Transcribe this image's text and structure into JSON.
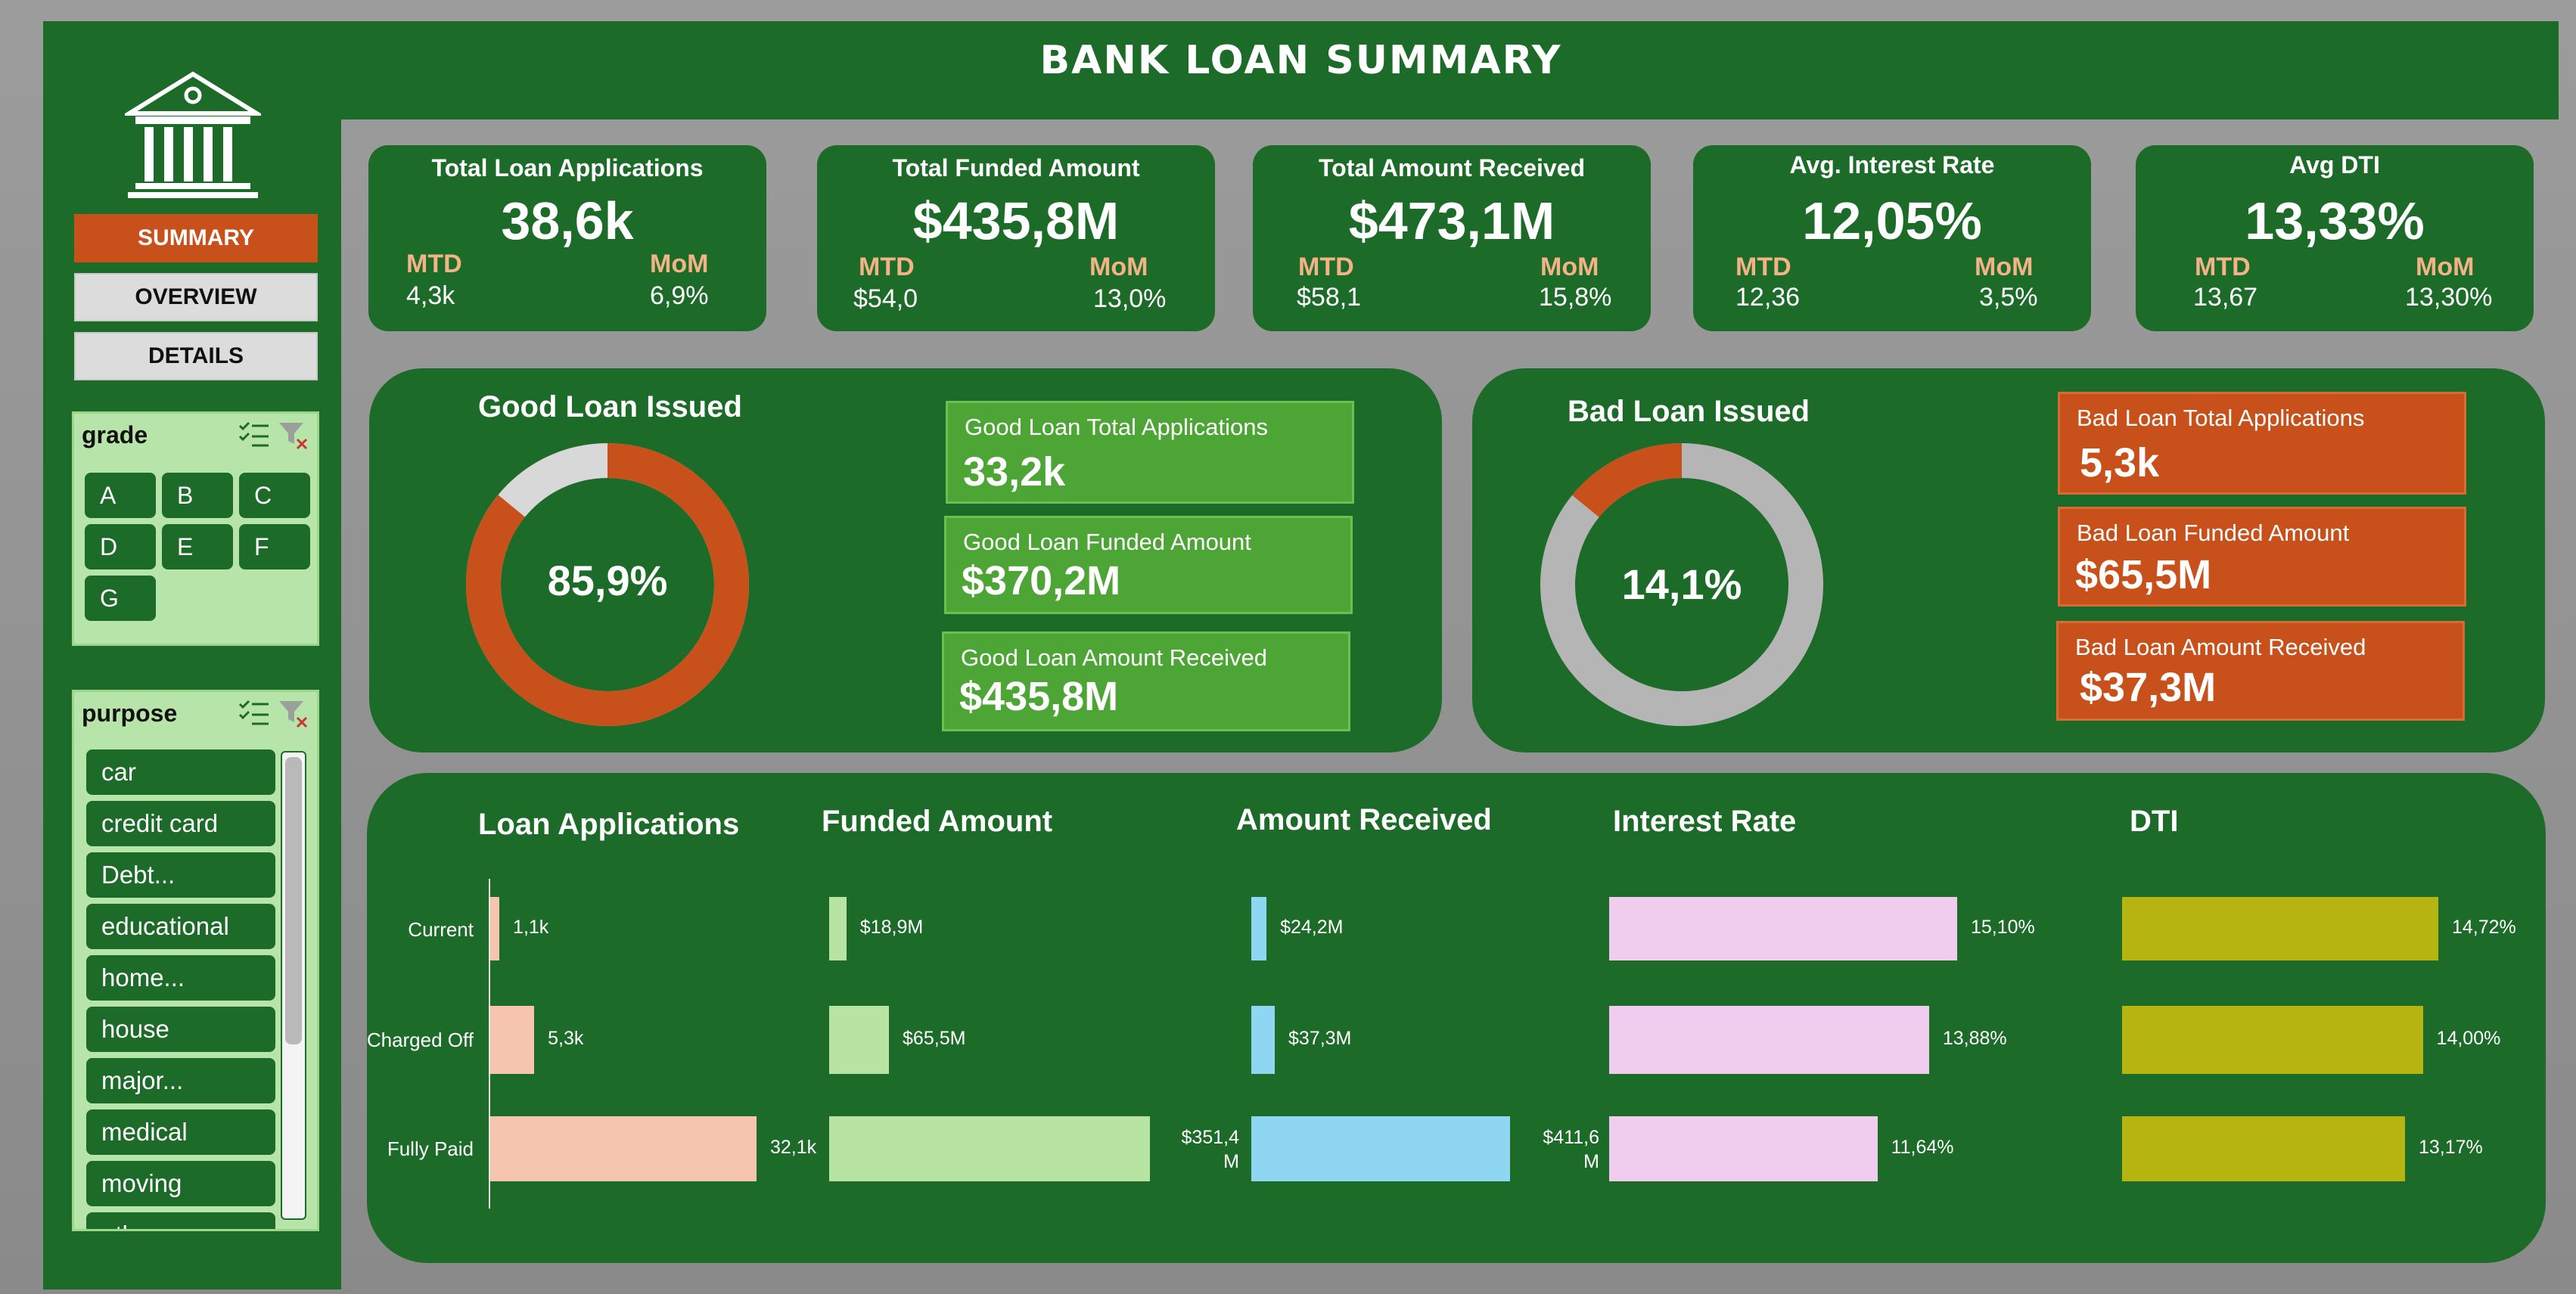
{
  "title": "BANK LOAN SUMMARY",
  "nav": {
    "summary": "SUMMARY",
    "overview": "OVERVIEW",
    "details": "DETAILS"
  },
  "slicer_grade": {
    "title": "grade",
    "items": [
      "A",
      "B",
      "C",
      "D",
      "E",
      "F",
      "G"
    ]
  },
  "slicer_purpose": {
    "title": "purpose",
    "items": [
      "car",
      "credit card",
      "Debt...",
      "educational",
      "home...",
      "house",
      "major...",
      "medical",
      "moving",
      "other"
    ]
  },
  "kpis": [
    {
      "title": "Total Loan Applications",
      "value": "38,6k",
      "mtd_label": "MTD",
      "mtd": "4,3k",
      "mom_label": "MoM",
      "mom": "6,9%"
    },
    {
      "title": "Total Funded Amount",
      "value": "$435,8M",
      "mtd_label": "MTD",
      "mtd": "$54,0",
      "mom_label": "MoM",
      "mom": "13,0%"
    },
    {
      "title": "Total Amount Received",
      "value": "$473,1M",
      "mtd_label": "MTD",
      "mtd": "$58,1",
      "mom_label": "MoM",
      "mom": "15,8%"
    },
    {
      "title": "Avg. Interest Rate",
      "value": "12,05%",
      "mtd_label": "MTD",
      "mtd": "12,36",
      "mom_label": "MoM",
      "mom": "3,5%"
    },
    {
      "title": "Avg DTI",
      "value": "13,33%",
      "mtd_label": "MTD",
      "mtd": "13,67",
      "mom_label": "MoM",
      "mom": "13,30%"
    }
  ],
  "good_loan": {
    "title": "Good Loan Issued",
    "percent_label": "85,9%",
    "percent": 85.9,
    "cards": [
      {
        "label": "Good Loan Total Applications",
        "value": "33,2k"
      },
      {
        "label": "Good Loan Funded Amount",
        "value": "$370,2M"
      },
      {
        "label": "Good Loan Amount Received",
        "value": "$435,8M"
      }
    ]
  },
  "bad_loan": {
    "title": "Bad Loan Issued",
    "percent_label": "14,1%",
    "percent": 14.1,
    "cards": [
      {
        "label": "Bad Loan Total Applications",
        "value": "5,3k"
      },
      {
        "label": "Bad Loan Funded Amount",
        "value": "$65,5M"
      },
      {
        "label": "Bad Loan Amount Received",
        "value": "$37,3M"
      }
    ]
  },
  "colors": {
    "dark_green": "#1d6b28",
    "orange": "#c8501a",
    "good_green": "#4da535",
    "donut_grey": "#c0c0c0"
  },
  "chart_data": [
    {
      "type": "bar",
      "title": "Loan Applications",
      "categories": [
        "Current",
        "Charged Off",
        "Fully Paid"
      ],
      "values": [
        1.1,
        5.3,
        32.1
      ],
      "labels": [
        "1,1k",
        "5,3k",
        "32,1k"
      ],
      "color": "#f5c5ad"
    },
    {
      "type": "bar",
      "title": "Funded Amount",
      "categories": [
        "Current",
        "Charged Off",
        "Fully Paid"
      ],
      "values": [
        18.9,
        65.5,
        351.4
      ],
      "labels": [
        "$18,9M",
        "$65,5M",
        "$351,4 M"
      ],
      "color": "#b7e4a2"
    },
    {
      "type": "bar",
      "title": "Amount Received",
      "categories": [
        "Current",
        "Charged Off",
        "Fully Paid"
      ],
      "values": [
        24.2,
        37.3,
        411.6
      ],
      "labels": [
        "$24,2M",
        "$37,3M",
        "$411,6 M"
      ],
      "color": "#8fd6f3"
    },
    {
      "type": "bar",
      "title": "Interest Rate",
      "categories": [
        "Current",
        "Charged Off",
        "Fully Paid"
      ],
      "values": [
        15.1,
        13.88,
        11.64
      ],
      "labels": [
        "15,10%",
        "13,88%",
        "11,64%"
      ],
      "color": "#f0cdee"
    },
    {
      "type": "bar",
      "title": "DTI",
      "categories": [
        "Current",
        "Charged Off",
        "Fully Paid"
      ],
      "values": [
        14.72,
        14.0,
        13.17
      ],
      "labels": [
        "14,72%",
        "14,00%",
        "13,17%"
      ],
      "color": "#b5b410"
    }
  ]
}
